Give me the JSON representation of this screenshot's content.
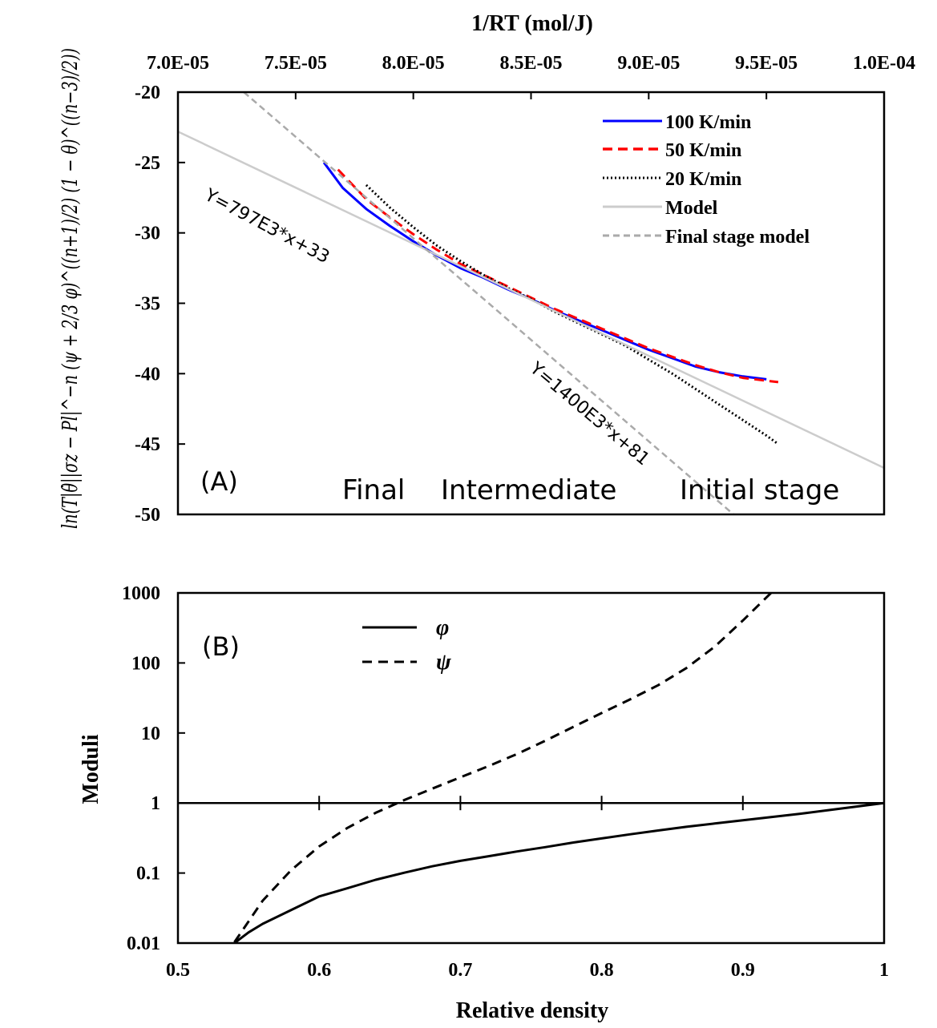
{
  "chart_data": [
    {
      "id": "A",
      "type": "line",
      "panel_label": "(A)",
      "xlabel": "1/RT  (mol/J)",
      "x_axis_position": "top",
      "xlim": [
        7e-05,
        0.0001
      ],
      "xticks": [
        7e-05,
        7.5e-05,
        8e-05,
        8.5e-05,
        9e-05,
        9.5e-05,
        0.0001
      ],
      "xtick_labels": [
        "7.0E-05",
        "7.5E-05",
        "8.0E-05",
        "8.5E-05",
        "9.0E-05",
        "9.5E-05",
        "1.0E-04"
      ],
      "ylim": [
        -50,
        -20
      ],
      "yticks": [
        -20,
        -25,
        -30,
        -35,
        -40,
        -45,
        -50
      ],
      "ytick_labels": [
        "-20",
        "-25",
        "-30",
        "-35",
        "-40",
        "-45",
        "-50"
      ],
      "ylabel": "ln(T|θ̇||σz − Pl|^−n (ψ + 2/3 φ)^((n+1)/2) (1 − θ)^((n−3)/2))",
      "legend_position": "top-right",
      "series": [
        {
          "name": "100 K/min",
          "style": "solid",
          "color": "#0000ff",
          "x": [
            7.62e-05,
            7.7e-05,
            7.8e-05,
            7.9e-05,
            8e-05,
            8.1e-05,
            8.2e-05,
            8.3e-05,
            8.4e-05,
            8.5e-05,
            8.6e-05,
            8.7e-05,
            8.8e-05,
            8.9e-05,
            9e-05,
            9.1e-05,
            9.2e-05,
            9.3e-05,
            9.4e-05,
            9.5e-05
          ],
          "y": [
            -25.0,
            -26.8,
            -28.3,
            -29.5,
            -30.6,
            -31.6,
            -32.5,
            -33.2,
            -34.0,
            -34.7,
            -35.5,
            -36.2,
            -36.9,
            -37.6,
            -38.3,
            -38.9,
            -39.5,
            -39.9,
            -40.2,
            -40.4
          ]
        },
        {
          "name": "50 K/min",
          "style": "dashed",
          "color": "#ff0000",
          "x": [
            7.68e-05,
            7.8e-05,
            7.9e-05,
            8e-05,
            8.1e-05,
            8.2e-05,
            8.3e-05,
            8.4e-05,
            8.5e-05,
            8.6e-05,
            8.7e-05,
            8.8e-05,
            8.9e-05,
            9e-05,
            9.1e-05,
            9.2e-05,
            9.3e-05,
            9.4e-05,
            9.55e-05
          ],
          "y": [
            -25.5,
            -27.6,
            -28.9,
            -30.1,
            -31.2,
            -32.2,
            -33.0,
            -33.8,
            -34.6,
            -35.4,
            -36.1,
            -36.8,
            -37.5,
            -38.2,
            -38.8,
            -39.4,
            -39.9,
            -40.3,
            -40.6
          ]
        },
        {
          "name": "20 K/min",
          "style": "dotted",
          "color": "#000000",
          "x": [
            7.8e-05,
            7.9e-05,
            8e-05,
            8.1e-05,
            8.2e-05,
            8.3e-05,
            8.4e-05,
            8.5e-05,
            8.6e-05,
            8.7e-05,
            8.8e-05,
            8.9e-05,
            9e-05,
            9.1e-05,
            9.2e-05,
            9.3e-05,
            9.4e-05,
            9.5e-05,
            9.55e-05
          ],
          "y": [
            -26.6,
            -28.2,
            -29.6,
            -30.9,
            -32.0,
            -33.0,
            -33.9,
            -34.7,
            -35.6,
            -36.4,
            -37.2,
            -38.0,
            -39.0,
            -40.0,
            -41.1,
            -42.2,
            -43.3,
            -44.4,
            -45.0
          ]
        },
        {
          "name": "Model",
          "style": "solid",
          "color": "#cccccc",
          "x": [
            7e-05,
            0.0001
          ],
          "y": [
            -22.8,
            -46.7
          ]
        },
        {
          "name": "Final stage model",
          "style": "dashed",
          "color": "#aaaaaa",
          "x": [
            7.28e-05,
            9.36e-05
          ],
          "y": [
            -20.0,
            -50.0
          ]
        }
      ],
      "annotations": [
        {
          "text": "Y=797E3*x+33",
          "x": 7.3e-05,
          "y": -27.8,
          "angle": 28
        },
        {
          "text": "Y=1400E3*x+81",
          "x": 9.08e-05,
          "y": -42.7,
          "angle": 40
        }
      ],
      "stage_labels": [
        "Final",
        "Intermediate",
        "Initial stage"
      ]
    },
    {
      "id": "B",
      "type": "line",
      "panel_label": "(B)",
      "xlabel": "Relative density",
      "ylabel": "Moduli",
      "xlim": [
        0.5,
        1
      ],
      "xticks": [
        0.5,
        0.6,
        0.7,
        0.8,
        0.9,
        1
      ],
      "xtick_labels": [
        "0.5",
        "0.6",
        "0.7",
        "0.8",
        "0.9",
        "1"
      ],
      "yscale": "log",
      "ylim": [
        0.01,
        1000
      ],
      "yticks": [
        0.01,
        0.1,
        1,
        10,
        100,
        1000
      ],
      "ytick_labels": [
        "0.01",
        "0.1",
        "1",
        "10",
        "100",
        "1000"
      ],
      "x_axis_at_y": 1,
      "legend_position": "top-left",
      "series": [
        {
          "name": "φ",
          "style": "solid",
          "color": "#000000",
          "x": [
            0.54,
            0.55,
            0.56,
            0.58,
            0.6,
            0.62,
            0.64,
            0.66,
            0.68,
            0.7,
            0.72,
            0.74,
            0.76,
            0.78,
            0.8,
            0.82,
            0.84,
            0.86,
            0.88,
            0.9,
            0.92,
            0.94,
            0.96,
            0.98,
            1.0
          ],
          "y": [
            0.01,
            0.0142,
            0.0188,
            0.0295,
            0.0463,
            0.0606,
            0.0802,
            0.1007,
            0.1248,
            0.1491,
            0.1739,
            0.2031,
            0.2343,
            0.2731,
            0.3117,
            0.3565,
            0.4055,
            0.4575,
            0.5089,
            0.5681,
            0.6312,
            0.6982,
            0.7861,
            0.8854,
            1.0
          ]
        },
        {
          "name": "ψ",
          "style": "dashed",
          "color": "#000000",
          "x": [
            0.54,
            0.56,
            0.58,
            0.6,
            0.62,
            0.64,
            0.66,
            0.68,
            0.7,
            0.72,
            0.74,
            0.76,
            0.78,
            0.8,
            0.82,
            0.84,
            0.86,
            0.88,
            0.9,
            0.92
          ],
          "y": [
            0.0103,
            0.0403,
            0.1095,
            0.2396,
            0.4405,
            0.7257,
            1.0964,
            1.6025,
            2.327,
            3.371,
            5.004,
            7.734,
            12.25,
            19.27,
            30.06,
            48.07,
            84.45,
            170.6,
            403.8,
            1000
          ]
        }
      ]
    }
  ]
}
